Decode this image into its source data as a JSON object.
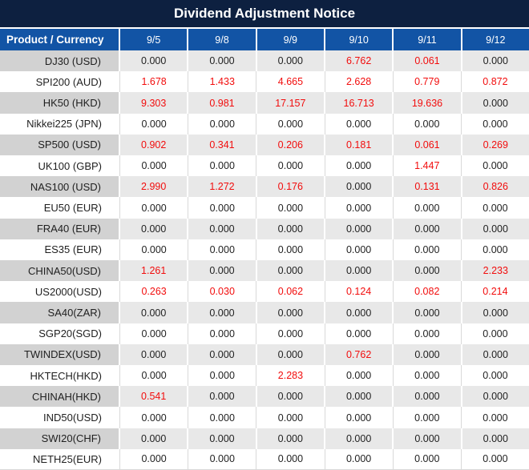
{
  "title": "Dividend Adjustment Notice",
  "table": {
    "product_header": "Product / Currency",
    "date_headers": [
      "9/5",
      "9/8",
      "9/9",
      "9/10",
      "9/11",
      "9/12"
    ],
    "rows": [
      {
        "product": "DJ30 (USD)",
        "values": [
          "0.000",
          "0.000",
          "0.000",
          "6.762",
          "0.061",
          "0.000"
        ]
      },
      {
        "product": "SPI200 (AUD)",
        "values": [
          "1.678",
          "1.433",
          "4.665",
          "2.628",
          "0.779",
          "0.872"
        ]
      },
      {
        "product": "HK50 (HKD)",
        "values": [
          "9.303",
          "0.981",
          "17.157",
          "16.713",
          "19.636",
          "0.000"
        ]
      },
      {
        "product": "Nikkei225 (JPN)",
        "values": [
          "0.000",
          "0.000",
          "0.000",
          "0.000",
          "0.000",
          "0.000"
        ]
      },
      {
        "product": "SP500 (USD)",
        "values": [
          "0.902",
          "0.341",
          "0.206",
          "0.181",
          "0.061",
          "0.269"
        ]
      },
      {
        "product": "UK100 (GBP)",
        "values": [
          "0.000",
          "0.000",
          "0.000",
          "0.000",
          "1.447",
          "0.000"
        ]
      },
      {
        "product": "NAS100 (USD)",
        "values": [
          "2.990",
          "1.272",
          "0.176",
          "0.000",
          "0.131",
          "0.826"
        ]
      },
      {
        "product": "EU50 (EUR)",
        "values": [
          "0.000",
          "0.000",
          "0.000",
          "0.000",
          "0.000",
          "0.000"
        ]
      },
      {
        "product": "FRA40 (EUR)",
        "values": [
          "0.000",
          "0.000",
          "0.000",
          "0.000",
          "0.000",
          "0.000"
        ]
      },
      {
        "product": "ES35 (EUR)",
        "values": [
          "0.000",
          "0.000",
          "0.000",
          "0.000",
          "0.000",
          "0.000"
        ]
      },
      {
        "product": "CHINA50(USD)",
        "values": [
          "1.261",
          "0.000",
          "0.000",
          "0.000",
          "0.000",
          "2.233"
        ]
      },
      {
        "product": "US2000(USD)",
        "values": [
          "0.263",
          "0.030",
          "0.062",
          "0.124",
          "0.082",
          "0.214"
        ]
      },
      {
        "product": "SA40(ZAR)",
        "values": [
          "0.000",
          "0.000",
          "0.000",
          "0.000",
          "0.000",
          "0.000"
        ]
      },
      {
        "product": "SGP20(SGD)",
        "values": [
          "0.000",
          "0.000",
          "0.000",
          "0.000",
          "0.000",
          "0.000"
        ]
      },
      {
        "product": "TWINDEX(USD)",
        "values": [
          "0.000",
          "0.000",
          "0.000",
          "0.762",
          "0.000",
          "0.000"
        ]
      },
      {
        "product": "HKTECH(HKD)",
        "values": [
          "0.000",
          "0.000",
          "2.283",
          "0.000",
          "0.000",
          "0.000"
        ]
      },
      {
        "product": "CHINAH(HKD)",
        "values": [
          "0.541",
          "0.000",
          "0.000",
          "0.000",
          "0.000",
          "0.000"
        ]
      },
      {
        "product": "IND50(USD)",
        "values": [
          "0.000",
          "0.000",
          "0.000",
          "0.000",
          "0.000",
          "0.000"
        ]
      },
      {
        "product": "SWI20(CHF)",
        "values": [
          "0.000",
          "0.000",
          "0.000",
          "0.000",
          "0.000",
          "0.000"
        ]
      },
      {
        "product": "NETH25(EUR)",
        "values": [
          "0.000",
          "0.000",
          "0.000",
          "0.000",
          "0.000",
          "0.000"
        ]
      }
    ],
    "value_color_rule": "nonzero values rendered in red, zero values in black"
  },
  "chart_data": {
    "type": "table",
    "title": "Dividend Adjustment Notice",
    "columns": [
      "Product / Currency",
      "9/5",
      "9/8",
      "9/9",
      "9/10",
      "9/11",
      "9/12"
    ],
    "rows": [
      [
        "DJ30 (USD)",
        0.0,
        0.0,
        0.0,
        6.762,
        0.061,
        0.0
      ],
      [
        "SPI200 (AUD)",
        1.678,
        1.433,
        4.665,
        2.628,
        0.779,
        0.872
      ],
      [
        "HK50 (HKD)",
        9.303,
        0.981,
        17.157,
        16.713,
        19.636,
        0.0
      ],
      [
        "Nikkei225 (JPN)",
        0.0,
        0.0,
        0.0,
        0.0,
        0.0,
        0.0
      ],
      [
        "SP500 (USD)",
        0.902,
        0.341,
        0.206,
        0.181,
        0.061,
        0.269
      ],
      [
        "UK100 (GBP)",
        0.0,
        0.0,
        0.0,
        0.0,
        1.447,
        0.0
      ],
      [
        "NAS100 (USD)",
        2.99,
        1.272,
        0.176,
        0.0,
        0.131,
        0.826
      ],
      [
        "EU50 (EUR)",
        0.0,
        0.0,
        0.0,
        0.0,
        0.0,
        0.0
      ],
      [
        "FRA40 (EUR)",
        0.0,
        0.0,
        0.0,
        0.0,
        0.0,
        0.0
      ],
      [
        "ES35 (EUR)",
        0.0,
        0.0,
        0.0,
        0.0,
        0.0,
        0.0
      ],
      [
        "CHINA50(USD)",
        1.261,
        0.0,
        0.0,
        0.0,
        0.0,
        2.233
      ],
      [
        "US2000(USD)",
        0.263,
        0.03,
        0.062,
        0.124,
        0.082,
        0.214
      ],
      [
        "SA40(ZAR)",
        0.0,
        0.0,
        0.0,
        0.0,
        0.0,
        0.0
      ],
      [
        "SGP20(SGD)",
        0.0,
        0.0,
        0.0,
        0.0,
        0.0,
        0.0
      ],
      [
        "TWINDEX(USD)",
        0.0,
        0.0,
        0.0,
        0.762,
        0.0,
        0.0
      ],
      [
        "HKTECH(HKD)",
        0.0,
        0.0,
        2.283,
        0.0,
        0.0,
        0.0
      ],
      [
        "CHINAH(HKD)",
        0.541,
        0.0,
        0.0,
        0.0,
        0.0,
        0.0
      ],
      [
        "IND50(USD)",
        0.0,
        0.0,
        0.0,
        0.0,
        0.0,
        0.0
      ],
      [
        "SWI20(CHF)",
        0.0,
        0.0,
        0.0,
        0.0,
        0.0,
        0.0
      ],
      [
        "NETH25(EUR)",
        0.0,
        0.0,
        0.0,
        0.0,
        0.0,
        0.0
      ]
    ]
  },
  "colors": {
    "title_bg": "#0d2040",
    "header_bg": "#1254a5",
    "row_gray_product_bg": "#d2d2d2",
    "row_gray_value_bg": "#e8e8e8",
    "row_white_bg": "#ffffff",
    "value_red": "#f20d0d",
    "value_black": "#1f1f1f"
  }
}
